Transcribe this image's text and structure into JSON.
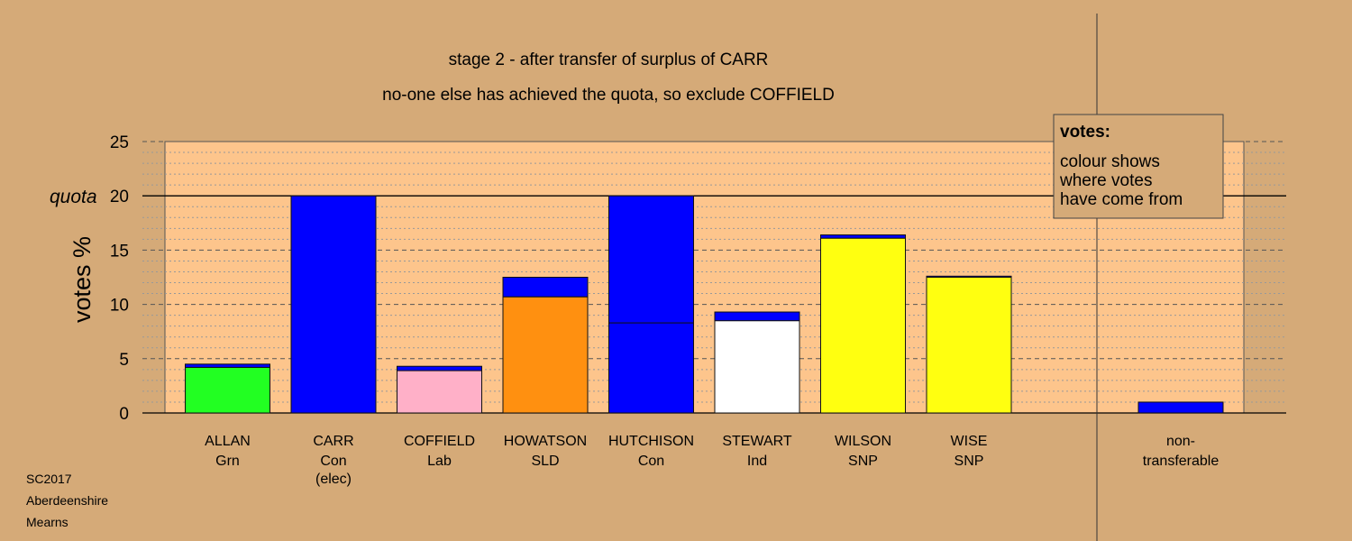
{
  "chart_data": {
    "type": "bar",
    "stacked": true,
    "title": "stage 2 - after transfer of surplus of CARR",
    "subtitle": "no-one else has achieved the quota, so exclude COFFIELD",
    "ylabel": "votes %",
    "ylim": [
      0,
      25
    ],
    "yticks": [
      0,
      5,
      10,
      15,
      20,
      25
    ],
    "quota": {
      "label": "quota",
      "value": 20
    },
    "grid": true,
    "legend": {
      "position": "top-right",
      "title": "votes:",
      "lines": [
        "colour shows",
        "where votes",
        "have come from"
      ]
    },
    "bars": [
      {
        "name": "ALLAN",
        "party": "Grn",
        "note": "",
        "segments": [
          {
            "value": 4.2,
            "color": "#22ff22"
          },
          {
            "value": 0.3,
            "color": "#0000ff"
          }
        ]
      },
      {
        "name": "CARR",
        "party": "Con",
        "note": "(elec)",
        "segments": [
          {
            "value": 20.0,
            "color": "#0000ff"
          }
        ]
      },
      {
        "name": "COFFIELD",
        "party": "Lab",
        "note": "",
        "segments": [
          {
            "value": 3.9,
            "color": "#ffb0c8"
          },
          {
            "value": 0.4,
            "color": "#0000ff"
          }
        ]
      },
      {
        "name": "HOWATSON",
        "party": "SLD",
        "note": "",
        "segments": [
          {
            "value": 10.7,
            "color": "#ff9010"
          },
          {
            "value": 1.8,
            "color": "#0000ff"
          }
        ]
      },
      {
        "name": "HUTCHISON",
        "party": "Con",
        "note": "",
        "segments": [
          {
            "value": 8.3,
            "color": "#0000ff"
          },
          {
            "value": 11.7,
            "color": "#0000ff"
          }
        ]
      },
      {
        "name": "STEWART",
        "party": "Ind",
        "note": "",
        "segments": [
          {
            "value": 8.5,
            "color": "#ffffff"
          },
          {
            "value": 0.8,
            "color": "#0000ff"
          }
        ]
      },
      {
        "name": "WILSON",
        "party": "SNP",
        "note": "",
        "segments": [
          {
            "value": 16.1,
            "color": "#ffff10"
          },
          {
            "value": 0.3,
            "color": "#0000ff"
          }
        ]
      },
      {
        "name": "WISE",
        "party": "SNP",
        "note": "",
        "segments": [
          {
            "value": 12.5,
            "color": "#ffff10"
          },
          {
            "value": 0.1,
            "color": "#0000ff"
          }
        ]
      }
    ],
    "nontransferable": {
      "name": "non-",
      "name2": "transferable",
      "value": 1.0,
      "color": "#0000ff"
    }
  },
  "colors": {
    "background": "#d5aa78",
    "plot_area": "#fdc58c"
  },
  "footer": {
    "line1": "SC2017",
    "line2": "Aberdeenshire",
    "line3": "Mearns"
  }
}
